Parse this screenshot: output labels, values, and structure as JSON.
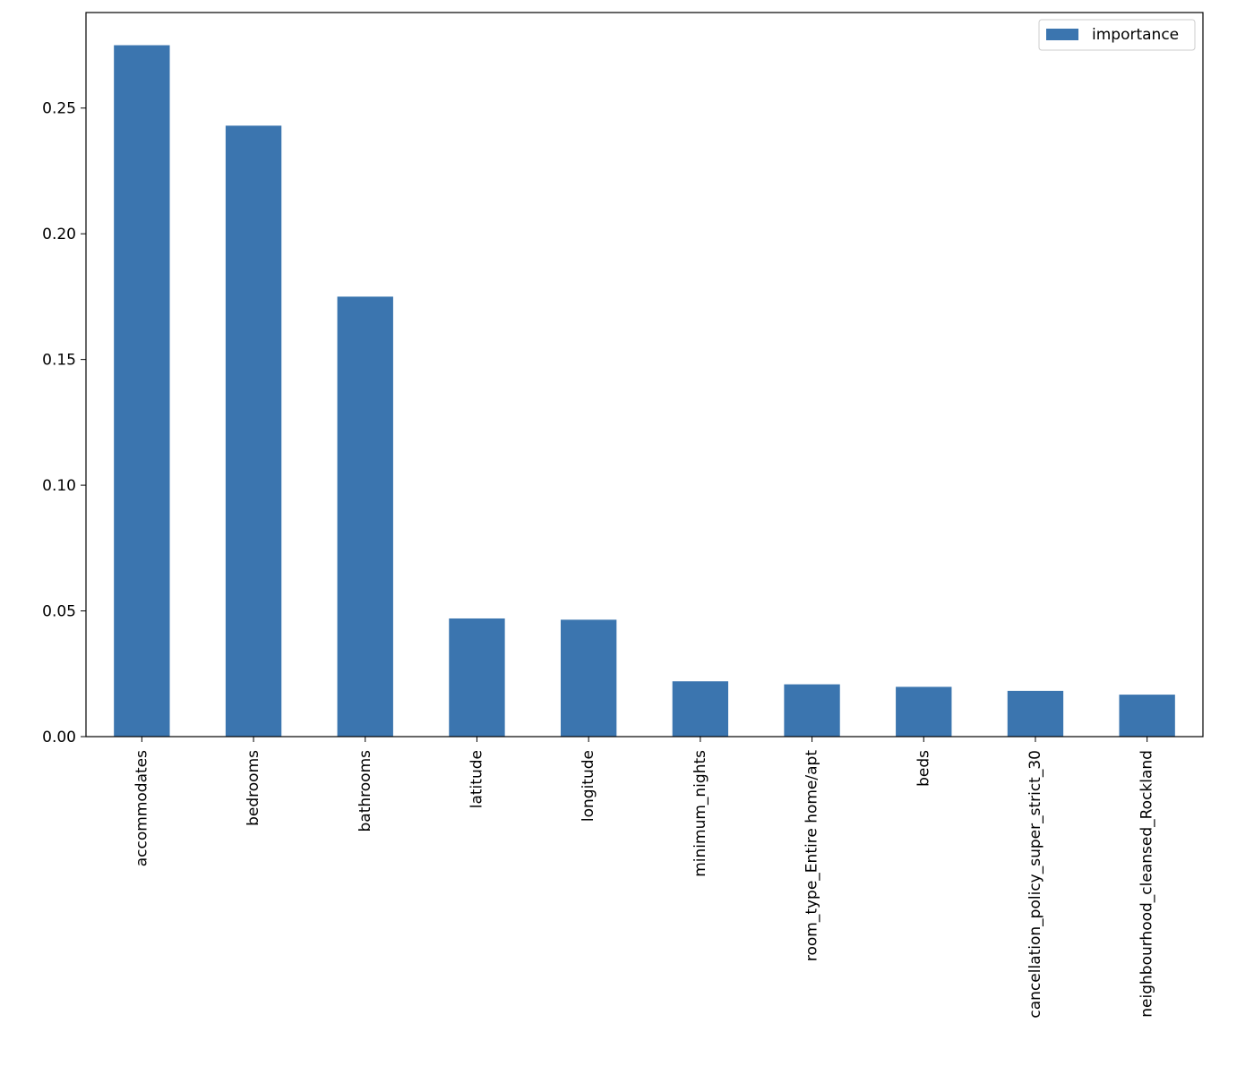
{
  "chart_data": {
    "type": "bar",
    "title": "",
    "xlabel": "",
    "ylabel": "",
    "categories": [
      "accommodates",
      "bedrooms",
      "bathrooms",
      "latitude",
      "longitude",
      "minimum_nights",
      "room_type_Entire home/apt",
      "beds",
      "cancellation_policy_super_strict_30",
      "neighbourhood_cleansed_Rockland"
    ],
    "series": [
      {
        "name": "importance",
        "color": "#3b75af",
        "values": [
          0.275,
          0.243,
          0.175,
          0.047,
          0.0465,
          0.022,
          0.0208,
          0.0198,
          0.0182,
          0.0167
        ]
      }
    ],
    "ylim": [
      0,
      0.288
    ],
    "yticks": [
      0.0,
      0.05,
      0.1,
      0.15,
      0.2,
      0.25
    ],
    "ytick_labels": [
      "0.00",
      "0.05",
      "0.10",
      "0.15",
      "0.20",
      "0.25"
    ],
    "grid": false,
    "legend": {
      "position": "upper-right",
      "entries": [
        "importance"
      ]
    }
  }
}
